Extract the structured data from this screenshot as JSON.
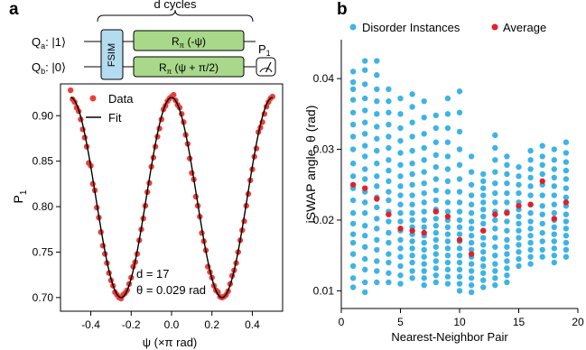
{
  "panels": {
    "a": "a",
    "b": "b"
  },
  "circuit": {
    "cycles_label": "d cycles",
    "qubit_a": "Q",
    "qubit_a_sub": "a",
    "qubit_a_state": ": |1⟩",
    "qubit_b": "Q",
    "qubit_b_sub": "b",
    "qubit_b_state": ": |0⟩",
    "fsim_label": "FSIM",
    "gate_top_main": "R",
    "gate_top_sub": "π",
    "gate_top_arg": " (-ψ)",
    "gate_bottom_main": "R",
    "gate_bottom_sub": "π",
    "gate_bottom_arg": " (ψ + π/2)",
    "measure_main": "P",
    "measure_sub": "1",
    "colors": {
      "gate_fill": "#a8d88a",
      "fsim_fill": "#b4dcf0"
    }
  },
  "chart_data": [
    {
      "type": "scatter",
      "panel": "a",
      "xlabel": "ψ (×π rad)",
      "ylabel_main": "P",
      "ylabel_sub": "1",
      "xlim": [
        -0.55,
        0.55
      ],
      "ylim": [
        0.685,
        0.935
      ],
      "xticks": [
        -0.4,
        -0.2,
        0.0,
        0.2,
        0.4
      ],
      "xtick_labels": [
        "-0.4",
        "-0.2",
        "0.0",
        "0.2",
        "0.4"
      ],
      "yticks": [
        0.7,
        0.75,
        0.8,
        0.85,
        0.9
      ],
      "ytick_labels": [
        "0.70",
        "0.75",
        "0.80",
        "0.85",
        "0.90"
      ],
      "legend": {
        "placement": "top-left",
        "items": [
          "Data",
          "Fit"
        ]
      },
      "annotation_1": "d = 17",
      "annotation_2": "θ = 0.029 rad",
      "fit_model": {
        "center": 0.81,
        "amplitude": 0.11,
        "period": 0.5,
        "xmin": -0.5,
        "xmax": 0.5
      },
      "series": [
        {
          "name": "Data",
          "color": "#e8403a",
          "x": [
            -0.5,
            -0.49,
            -0.48,
            -0.47,
            -0.46,
            -0.45,
            -0.44,
            -0.43,
            -0.42,
            -0.41,
            -0.4,
            -0.39,
            -0.38,
            -0.37,
            -0.36,
            -0.35,
            -0.34,
            -0.33,
            -0.32,
            -0.31,
            -0.3,
            -0.29,
            -0.28,
            -0.27,
            -0.26,
            -0.25,
            -0.24,
            -0.23,
            -0.22,
            -0.21,
            -0.2,
            -0.19,
            -0.18,
            -0.17,
            -0.16,
            -0.15,
            -0.14,
            -0.13,
            -0.12,
            -0.11,
            -0.1,
            -0.09,
            -0.08,
            -0.07,
            -0.06,
            -0.05,
            -0.04,
            -0.03,
            -0.02,
            -0.01,
            0.0,
            0.01,
            0.02,
            0.03,
            0.04,
            0.05,
            0.06,
            0.07,
            0.08,
            0.09,
            0.1,
            0.11,
            0.12,
            0.13,
            0.14,
            0.15,
            0.16,
            0.17,
            0.18,
            0.19,
            0.2,
            0.21,
            0.22,
            0.23,
            0.24,
            0.25,
            0.26,
            0.27,
            0.28,
            0.29,
            0.3,
            0.31,
            0.32,
            0.33,
            0.34,
            0.35,
            0.36,
            0.37,
            0.38,
            0.39,
            0.4,
            0.41,
            0.42,
            0.43,
            0.44,
            0.45,
            0.46,
            0.47,
            0.48,
            0.49,
            0.5
          ],
          "y": [
            0.928,
            0.918,
            0.915,
            0.909,
            0.905,
            0.896,
            0.885,
            0.876,
            0.866,
            0.848,
            0.845,
            0.825,
            0.818,
            0.799,
            0.788,
            0.772,
            0.757,
            0.748,
            0.738,
            0.727,
            0.719,
            0.713,
            0.706,
            0.703,
            0.7,
            0.699,
            0.703,
            0.705,
            0.708,
            0.715,
            0.722,
            0.734,
            0.739,
            0.748,
            0.763,
            0.775,
            0.787,
            0.801,
            0.816,
            0.826,
            0.844,
            0.854,
            0.866,
            0.877,
            0.886,
            0.896,
            0.907,
            0.911,
            0.916,
            0.919,
            0.921,
            0.923,
            0.917,
            0.912,
            0.909,
            0.902,
            0.893,
            0.879,
            0.869,
            0.853,
            0.837,
            0.83,
            0.811,
            0.801,
            0.789,
            0.771,
            0.762,
            0.752,
            0.734,
            0.728,
            0.722,
            0.713,
            0.708,
            0.706,
            0.701,
            0.7,
            0.701,
            0.703,
            0.707,
            0.715,
            0.724,
            0.73,
            0.738,
            0.75,
            0.763,
            0.774,
            0.784,
            0.801,
            0.814,
            0.829,
            0.841,
            0.855,
            0.864,
            0.882,
            0.887,
            0.893,
            0.902,
            0.91,
            0.915,
            0.919,
            0.921
          ]
        }
      ]
    },
    {
      "type": "scatter",
      "panel": "b",
      "xlabel": "Nearest-Neighbor Pair",
      "ylabel": "iSWAP angle, θ (rad)",
      "xlim": [
        0,
        20
      ],
      "ylim": [
        0.0075,
        0.0455
      ],
      "xticks": [
        0,
        5,
        10,
        15,
        20
      ],
      "xtick_labels": [
        "0",
        "5",
        "10",
        "15",
        "20"
      ],
      "yticks": [
        0.01,
        0.02,
        0.03,
        0.04
      ],
      "ytick_labels": [
        "0.01",
        "0.02",
        "0.03",
        "0.04"
      ],
      "legend": {
        "placement": "top",
        "items": [
          "Disorder Instances",
          "Average"
        ]
      },
      "series": [
        {
          "name": "Disorder Instances",
          "color": "#3db4e5",
          "pairs": [
            {
              "x": 1,
              "y": [
                0.0105,
                0.0118,
                0.0135,
                0.0152,
                0.0168,
                0.018,
                0.0195,
                0.021,
                0.0228,
                0.0245,
                0.0262,
                0.028,
                0.03,
                0.0318,
                0.0335,
                0.0352,
                0.037,
                0.0385,
                0.0395,
                0.041
              ]
            },
            {
              "x": 2,
              "y": [
                0.0098,
                0.0112,
                0.013,
                0.0145,
                0.0162,
                0.0178,
                0.0192,
                0.021,
                0.0225,
                0.024,
                0.0258,
                0.0272,
                0.029,
                0.0305,
                0.0322,
                0.0338,
                0.0355,
                0.0372,
                0.0392,
                0.0412,
                0.0425
              ]
            },
            {
              "x": 3,
              "y": [
                0.0112,
                0.0128,
                0.0142,
                0.0158,
                0.0172,
                0.0188,
                0.0202,
                0.0218,
                0.0232,
                0.0248,
                0.0262,
                0.028,
                0.0298,
                0.0315,
                0.0332,
                0.035,
                0.0368,
                0.0385,
                0.0405,
                0.0425
              ]
            },
            {
              "x": 4,
              "y": [
                0.0112,
                0.0125,
                0.014,
                0.0152,
                0.0168,
                0.0182,
                0.0198,
                0.0212,
                0.0228,
                0.024,
                0.0255,
                0.027,
                0.0285,
                0.0302,
                0.0318,
                0.0335,
                0.0352,
                0.0368,
                0.0385
              ]
            },
            {
              "x": 5,
              "y": [
                0.011,
                0.0122,
                0.0135,
                0.0148,
                0.016,
                0.0172,
                0.0185,
                0.0198,
                0.021,
                0.0222,
                0.0235,
                0.0248,
                0.0262,
                0.0278,
                0.0295,
                0.0312,
                0.033,
                0.035,
                0.0372
              ]
            },
            {
              "x": 6,
              "y": [
                0.0118,
                0.0128,
                0.014,
                0.015,
                0.016,
                0.017,
                0.018,
                0.019,
                0.02,
                0.021,
                0.0222,
                0.0235,
                0.025,
                0.0265,
                0.028,
                0.0298,
                0.0318,
                0.0338,
                0.036,
                0.0378
              ]
            },
            {
              "x": 7,
              "y": [
                0.0108,
                0.0118,
                0.0128,
                0.0138,
                0.0148,
                0.0158,
                0.0168,
                0.0178,
                0.019,
                0.02,
                0.0212,
                0.0225,
                0.0238,
                0.0252,
                0.0268,
                0.0285,
                0.0302,
                0.0322,
                0.0345,
                0.0368
              ]
            },
            {
              "x": 8,
              "y": [
                0.0112,
                0.0122,
                0.0132,
                0.0142,
                0.0152,
                0.0162,
                0.0172,
                0.0182,
                0.0192,
                0.0202,
                0.0215,
                0.0228,
                0.0242,
                0.0258,
                0.0275,
                0.0292,
                0.031,
                0.033,
                0.0348
              ]
            },
            {
              "x": 9,
              "y": [
                0.011,
                0.012,
                0.013,
                0.014,
                0.015,
                0.016,
                0.017,
                0.018,
                0.019,
                0.02,
                0.0212,
                0.0225,
                0.024,
                0.0255,
                0.0272,
                0.029,
                0.031,
                0.033,
                0.035,
                0.0372
              ]
            },
            {
              "x": 10,
              "y": [
                0.01,
                0.011,
                0.012,
                0.013,
                0.014,
                0.015,
                0.016,
                0.017,
                0.018,
                0.019,
                0.02,
                0.0212,
                0.0225,
                0.024,
                0.0258,
                0.0278,
                0.03,
                0.0325,
                0.0352,
                0.0382
              ]
            },
            {
              "x": 11,
              "y": [
                0.0098,
                0.0108,
                0.0118,
                0.0128,
                0.0138,
                0.0148,
                0.0158,
                0.0168,
                0.0178,
                0.0188,
                0.0198,
                0.021,
                0.0222,
                0.0235,
                0.025,
                0.0268,
                0.029
              ]
            },
            {
              "x": 12,
              "y": [
                0.0105,
                0.0115,
                0.0125,
                0.0135,
                0.0145,
                0.0155,
                0.0165,
                0.0175,
                0.0185,
                0.0195,
                0.0205,
                0.0215,
                0.0225,
                0.0235,
                0.0245,
                0.0255,
                0.0265
              ]
            },
            {
              "x": 13,
              "y": [
                0.0108,
                0.0118,
                0.0128,
                0.0138,
                0.015,
                0.0162,
                0.0175,
                0.0188,
                0.02,
                0.0212,
                0.0225,
                0.0238,
                0.0252,
                0.0268,
                0.0285,
                0.0302,
                0.032
              ]
            },
            {
              "x": 14,
              "y": [
                0.0112,
                0.0122,
                0.0132,
                0.0142,
                0.0152,
                0.0162,
                0.0172,
                0.0185,
                0.0198,
                0.0212,
                0.0225,
                0.0238,
                0.0252,
                0.0265,
                0.0278,
                0.029
              ]
            },
            {
              "x": 15,
              "y": [
                0.0135,
                0.0145,
                0.0155,
                0.0165,
                0.0175,
                0.0185,
                0.0195,
                0.0205,
                0.0215,
                0.0225,
                0.0238,
                0.025,
                0.0262,
                0.0275
              ]
            },
            {
              "x": 16,
              "y": [
                0.0138,
                0.0148,
                0.0158,
                0.0168,
                0.0178,
                0.0188,
                0.0198,
                0.021,
                0.0222,
                0.0235,
                0.0248,
                0.026,
                0.0272,
                0.0285,
                0.0298
              ]
            },
            {
              "x": 17,
              "y": [
                0.0148,
                0.0158,
                0.017,
                0.0182,
                0.0195,
                0.0208,
                0.022,
                0.0235,
                0.025,
                0.0265,
                0.0278,
                0.029,
                0.0305
              ]
            },
            {
              "x": 18,
              "y": [
                0.014,
                0.015,
                0.016,
                0.017,
                0.018,
                0.019,
                0.02,
                0.021,
                0.0222,
                0.0235,
                0.0248,
                0.026,
                0.0272,
                0.0285,
                0.03
              ]
            },
            {
              "x": 19,
              "y": [
                0.0148,
                0.0158,
                0.0168,
                0.0178,
                0.0188,
                0.0198,
                0.0208,
                0.022,
                0.0232,
                0.0245,
                0.0258,
                0.027,
                0.0282,
                0.0295,
                0.031
              ]
            }
          ]
        },
        {
          "name": "Average",
          "color": "#e0202a",
          "x": [
            1,
            2,
            3,
            4,
            5,
            6,
            7,
            8,
            9,
            10,
            11,
            12,
            13,
            14,
            15,
            16,
            17,
            18,
            19
          ],
          "y": [
            0.025,
            0.0245,
            0.023,
            0.0208,
            0.0188,
            0.0185,
            0.0182,
            0.0212,
            0.0205,
            0.0172,
            0.0152,
            0.0185,
            0.0208,
            0.021,
            0.022,
            0.0222,
            0.0255,
            0.0202,
            0.0225
          ]
        }
      ]
    }
  ]
}
